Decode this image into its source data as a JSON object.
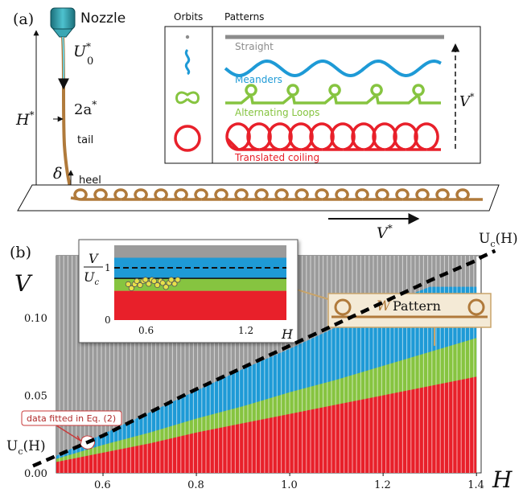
{
  "panel_a": {
    "label": "(a)",
    "nozzle": "Nozzle",
    "u0_sym": "U",
    "u0_sup": "*",
    "u0_sub": "0",
    "h_sym": "H",
    "h_sup": "*",
    "a_sym": "2a",
    "a_sup": "*",
    "tail": "tail",
    "delta": "δ",
    "heel": "heel",
    "v_sym": "V",
    "v_sup": "*",
    "legend": {
      "orbits_header": "Orbits",
      "patterns_header": "Patterns",
      "rows": [
        {
          "label": "Straight",
          "color": "#8c8c8c"
        },
        {
          "label": "Meanders",
          "color": "#1e9ad6"
        },
        {
          "label": "Alternating Loops",
          "color": "#86c440"
        },
        {
          "label": "Translated coiling",
          "color": "#e8202a"
        }
      ],
      "arrow_sym": "V",
      "arrow_sup": "*"
    }
  },
  "panel_b": {
    "label": "(b)",
    "ylabel": "V",
    "xlabel": "H",
    "uc_sym": "U",
    "uc_sub": "c",
    "uc_arg": "(H)",
    "callout": "data fitted in Eq. (2)",
    "w_pattern_sym": "W",
    "w_pattern_word": "Pattern",
    "inset": {
      "y_num": "V",
      "y_den": "U",
      "y_den_sub": "c",
      "yticks": [
        "1",
        "0"
      ],
      "xticks": [
        "0.6",
        "1.2"
      ],
      "xlabel": "H"
    }
  },
  "chart_data": {
    "type": "area",
    "xlabel": "H",
    "ylabel": "V",
    "xlim": [
      0.5,
      1.41
    ],
    "ylim": [
      0.0,
      0.14
    ],
    "xticks": [
      "0.6",
      "0.8",
      "1.0",
      "1.2",
      "1.4"
    ],
    "yticks": [
      "0.00",
      "0.05",
      "0.10"
    ],
    "x": [
      0.5,
      0.6,
      0.7,
      0.8,
      0.9,
      1.0,
      1.1,
      1.2,
      1.3,
      1.4
    ],
    "series": [
      {
        "color": "#e8202a",
        "values": [
          0.007,
          0.013,
          0.019,
          0.026,
          0.032,
          0.038,
          0.044,
          0.05,
          0.056,
          0.062
        ]
      },
      {
        "color": "#86c440",
        "values": [
          0.009,
          0.018,
          0.026,
          0.035,
          0.043,
          0.052,
          0.06,
          0.069,
          0.078,
          0.087
        ]
      },
      {
        "color": "#1e9ad6",
        "values": [
          0.011,
          0.025,
          0.039,
          0.053,
          0.067,
          0.08,
          0.094,
          0.108,
          0.12,
          0.12
        ]
      },
      {
        "color": "#9b9b9b",
        "values": [
          0.14,
          0.14,
          0.14,
          0.14,
          0.14,
          0.14,
          0.14,
          0.14,
          0.14,
          0.14
        ]
      }
    ],
    "curves": [
      {
        "name": "Uc(H)",
        "color": "#000000",
        "x": [
          0.5,
          0.6,
          0.7,
          0.8,
          0.9,
          1.0,
          1.1,
          1.2,
          1.3,
          1.4,
          1.41
        ],
        "y": [
          0.011,
          0.024,
          0.039,
          0.054,
          0.068,
          0.082,
          0.096,
          0.11,
          0.124,
          0.137,
          0.139
        ]
      }
    ],
    "inset": {
      "xlim": [
        0.45,
        1.45
      ],
      "ylim": [
        0,
        1.2
      ],
      "bands": [
        {
          "color": "#e8202a",
          "from": 0.0,
          "to": 0.47
        },
        {
          "color": "#86c440",
          "from": 0.47,
          "to": 0.67
        },
        {
          "color": "#1e9ad6",
          "from": 0.67,
          "to": 1.0
        },
        {
          "color": "#9b9b9b",
          "from": 1.0,
          "to": 1.2
        }
      ],
      "fit_points_x": [
        0.55,
        0.6,
        0.65,
        0.7,
        0.75,
        0.8
      ],
      "fit_points_y": [
        0.55,
        0.6,
        0.62,
        0.6,
        0.57,
        0.62
      ]
    }
  }
}
